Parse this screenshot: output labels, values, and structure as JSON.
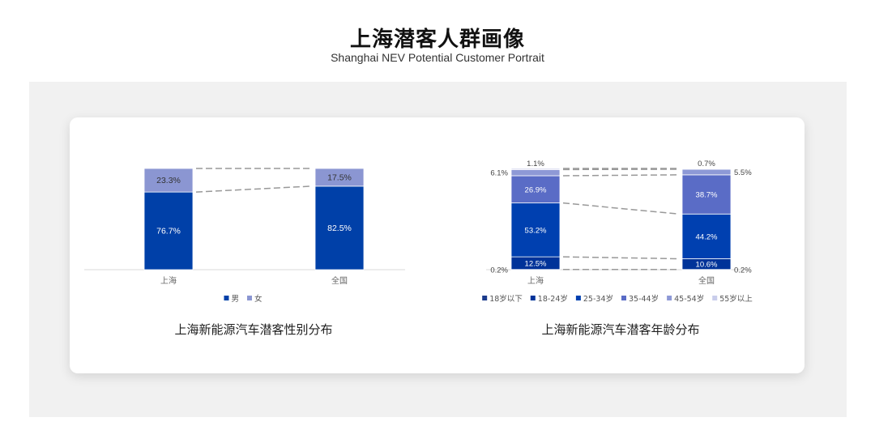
{
  "header": {
    "title": "上海潜客人群画像",
    "subtitle": "Shanghai NEV Potential Customer Portrait"
  },
  "chart_data": [
    {
      "type": "bar",
      "stacked": true,
      "percent": true,
      "title": "上海新能源汽车潜客性别分布",
      "categories": [
        "上海",
        "全国"
      ],
      "series": [
        {
          "name": "男",
          "values": [
            76.7,
            82.5
          ],
          "color": "#0040a8",
          "label_color": "#ffffff"
        },
        {
          "name": "女",
          "values": [
            23.3,
            17.5
          ],
          "color": "#8b96d2",
          "label_color": "#333333"
        }
      ],
      "labels": [
        [
          "76.7%",
          "82.5%"
        ],
        [
          "23.3%",
          "17.5%"
        ]
      ],
      "ylim": [
        0,
        100
      ],
      "grid": false,
      "legend": "bottom",
      "connector_lines": "dashed"
    },
    {
      "type": "bar",
      "stacked": true,
      "percent": true,
      "title": "上海新能源汽车潜客年龄分布",
      "categories": [
        "上海",
        "全国"
      ],
      "series": [
        {
          "name": "18岁以下",
          "values": [
            0.2,
            0.2
          ],
          "color": "#1b3b8c",
          "label_color": "#555555"
        },
        {
          "name": "18-24岁",
          "values": [
            12.5,
            10.6
          ],
          "color": "#003399",
          "label_color": "#ffffff"
        },
        {
          "name": "25-34岁",
          "values": [
            53.2,
            44.2
          ],
          "color": "#0040b0",
          "label_color": "#ffffff"
        },
        {
          "name": "35-44岁",
          "values": [
            26.9,
            38.7
          ],
          "color": "#5a6cc6",
          "label_color": "#ffffff"
        },
        {
          "name": "45-54岁",
          "values": [
            6.1,
            5.5
          ],
          "color": "#8e99d6",
          "label_color": "#444444"
        },
        {
          "name": "55岁以上",
          "values": [
            1.1,
            0.7
          ],
          "color": "#c9cdeb",
          "label_color": "#444444"
        }
      ],
      "labels": [
        [
          "0.2%",
          "0.2%"
        ],
        [
          "12.5%",
          "10.6%"
        ],
        [
          "53.2%",
          "44.2%"
        ],
        [
          "26.9%",
          "38.7%"
        ],
        [
          "6.1%",
          "5.5%"
        ],
        [
          "1.1%",
          "0.7%"
        ]
      ],
      "ylim": [
        0,
        100
      ],
      "grid": false,
      "legend": "bottom",
      "connector_lines": "dashed"
    }
  ]
}
